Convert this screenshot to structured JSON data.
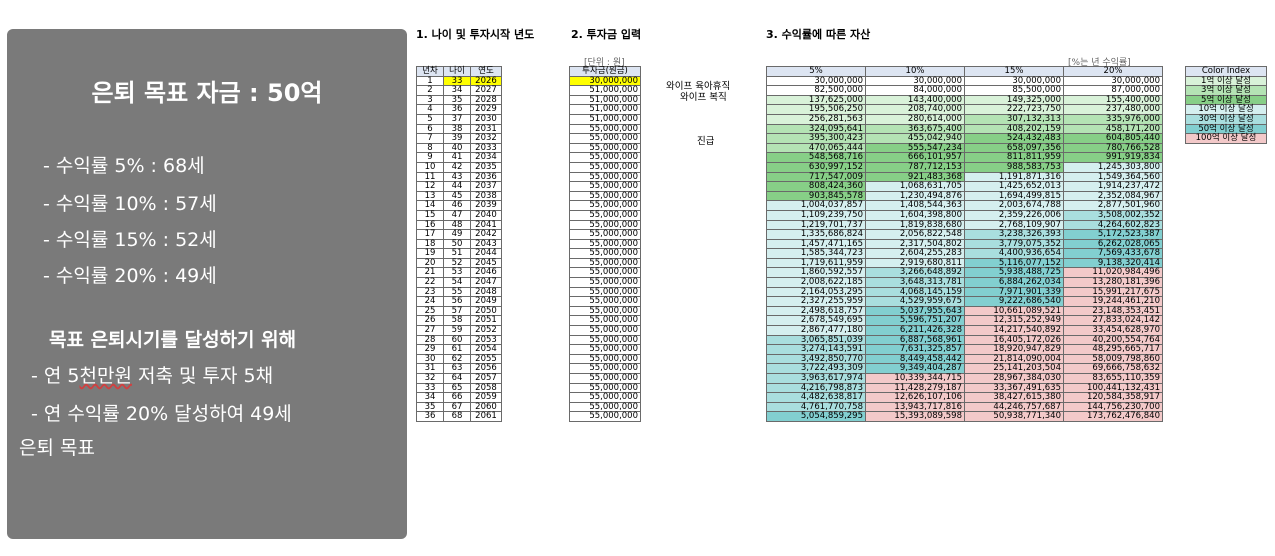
{
  "panel": {
    "title": "은퇴 목표 자금 : 50억",
    "rate_lines": [
      "- 수익률   5% : 68세",
      "- 수익률 10% : 57세",
      "- 수익률 15% : 52세",
      "- 수익률 20% : 49세"
    ],
    "goal_heading": "목표 은퇴시기를 달성하기 위해",
    "plan_1": "- 연 5천만원 저축 및 투자 5채",
    "plan_2": "- 연 수익률 20% 달성하여 49세",
    "plan_3": "은퇴 목표",
    "underlined_word": "천만원"
  },
  "sections": {
    "s1": "1. 나이 및 투자시작 년도",
    "s2": "2. 투자금 입력",
    "s3": "3. 수익률에 따른 자산"
  },
  "notes": {
    "unit": "[단위 : 원]",
    "rate_note": "[%는 년 수익률]"
  },
  "side_labels": {
    "leave": "와이프 육아휴직",
    "welfare": "와이프 복직",
    "promotion": "진급"
  },
  "age_table": {
    "headers": [
      "년차",
      "나이",
      "연도"
    ],
    "rows": [
      [
        "1",
        "33",
        "2026"
      ],
      [
        "2",
        "34",
        "2027"
      ],
      [
        "3",
        "35",
        "2028"
      ],
      [
        "4",
        "36",
        "2029"
      ],
      [
        "5",
        "37",
        "2030"
      ],
      [
        "6",
        "38",
        "2031"
      ],
      [
        "7",
        "39",
        "2032"
      ],
      [
        "8",
        "40",
        "2033"
      ],
      [
        "9",
        "41",
        "2034"
      ],
      [
        "10",
        "42",
        "2035"
      ],
      [
        "11",
        "43",
        "2036"
      ],
      [
        "12",
        "44",
        "2037"
      ],
      [
        "13",
        "45",
        "2038"
      ],
      [
        "14",
        "46",
        "2039"
      ],
      [
        "15",
        "47",
        "2040"
      ],
      [
        "16",
        "48",
        "2041"
      ],
      [
        "17",
        "49",
        "2042"
      ],
      [
        "18",
        "50",
        "2043"
      ],
      [
        "19",
        "51",
        "2044"
      ],
      [
        "20",
        "52",
        "2045"
      ],
      [
        "21",
        "53",
        "2046"
      ],
      [
        "22",
        "54",
        "2047"
      ],
      [
        "23",
        "55",
        "2048"
      ],
      [
        "24",
        "56",
        "2049"
      ],
      [
        "25",
        "57",
        "2050"
      ],
      [
        "26",
        "58",
        "2051"
      ],
      [
        "27",
        "59",
        "2052"
      ],
      [
        "28",
        "60",
        "2053"
      ],
      [
        "29",
        "61",
        "2054"
      ],
      [
        "30",
        "62",
        "2055"
      ],
      [
        "31",
        "63",
        "2056"
      ],
      [
        "32",
        "64",
        "2057"
      ],
      [
        "33",
        "65",
        "2058"
      ],
      [
        "34",
        "66",
        "2059"
      ],
      [
        "35",
        "67",
        "2060"
      ],
      [
        "36",
        "68",
        "2061"
      ]
    ]
  },
  "input_table": {
    "header": "투자금(원금)",
    "rows": [
      "30,000,000",
      "51,000,000",
      "51,000,000",
      "51,000,000",
      "51,000,000",
      "55,000,000",
      "55,000,000",
      "55,000,000",
      "55,000,000",
      "55,000,000",
      "55,000,000",
      "55,000,000",
      "55,000,000",
      "55,000,000",
      "55,000,000",
      "55,000,000",
      "55,000,000",
      "55,000,000",
      "55,000,000",
      "55,000,000",
      "55,000,000",
      "55,000,000",
      "55,000,000",
      "55,000,000",
      "55,000,000",
      "55,000,000",
      "55,000,000",
      "55,000,000",
      "55,000,000",
      "55,000,000",
      "55,000,000",
      "55,000,000",
      "55,000,000",
      "55,000,000",
      "55,000,000",
      "55,000,000"
    ]
  },
  "asset_table": {
    "headers": [
      "5%",
      "10%",
      "15%",
      "20%"
    ],
    "rows": [
      [
        "30,000,000",
        "30,000,000",
        "30,000,000",
        "30,000,000"
      ],
      [
        "82,500,000",
        "84,000,000",
        "85,500,000",
        "87,000,000"
      ],
      [
        "137,625,000",
        "143,400,000",
        "149,325,000",
        "155,400,000"
      ],
      [
        "195,506,250",
        "208,740,000",
        "222,723,750",
        "237,480,000"
      ],
      [
        "256,281,563",
        "280,614,000",
        "307,132,313",
        "335,976,000"
      ],
      [
        "324,095,641",
        "363,675,400",
        "408,202,159",
        "458,171,200"
      ],
      [
        "395,300,423",
        "455,042,940",
        "524,432,483",
        "604,805,440"
      ],
      [
        "470,065,444",
        "555,547,234",
        "658,097,356",
        "780,766,528"
      ],
      [
        "548,568,716",
        "666,101,957",
        "811,811,959",
        "991,919,834"
      ],
      [
        "630,997,152",
        "787,712,153",
        "988,583,753",
        "1,245,303,800"
      ],
      [
        "717,547,009",
        "921,483,368",
        "1,191,871,316",
        "1,549,364,560"
      ],
      [
        "808,424,360",
        "1,068,631,705",
        "1,425,652,013",
        "1,914,237,472"
      ],
      [
        "903,845,578",
        "1,230,494,876",
        "1,694,499,815",
        "2,352,084,967"
      ],
      [
        "1,004,037,857",
        "1,408,544,363",
        "2,003,674,788",
        "2,877,501,960"
      ],
      [
        "1,109,239,750",
        "1,604,398,800",
        "2,359,226,006",
        "3,508,002,352"
      ],
      [
        "1,219,701,737",
        "1,819,838,680",
        "2,768,109,907",
        "4,264,602,823"
      ],
      [
        "1,335,686,824",
        "2,056,822,548",
        "3,238,326,393",
        "5,172,523,387"
      ],
      [
        "1,457,471,165",
        "2,317,504,802",
        "3,779,075,352",
        "6,262,028,065"
      ],
      [
        "1,585,344,723",
        "2,604,255,283",
        "4,400,936,654",
        "7,569,433,678"
      ],
      [
        "1,719,611,959",
        "2,919,680,811",
        "5,116,077,152",
        "9,138,320,414"
      ],
      [
        "1,860,592,557",
        "3,266,648,892",
        "5,938,488,725",
        "11,020,984,496"
      ],
      [
        "2,008,622,185",
        "3,648,313,781",
        "6,884,262,034",
        "13,280,181,396"
      ],
      [
        "2,164,053,295",
        "4,068,145,159",
        "7,971,901,339",
        "15,991,217,675"
      ],
      [
        "2,327,255,959",
        "4,529,959,675",
        "9,222,686,540",
        "19,244,461,210"
      ],
      [
        "2,498,618,757",
        "5,037,955,643",
        "10,661,089,521",
        "23,148,353,451"
      ],
      [
        "2,678,549,695",
        "5,596,751,207",
        "12,315,252,949",
        "27,833,024,142"
      ],
      [
        "2,867,477,180",
        "6,211,426,328",
        "14,217,540,892",
        "33,454,628,970"
      ],
      [
        "3,065,851,039",
        "6,887,568,961",
        "16,405,172,026",
        "40,200,554,764"
      ],
      [
        "3,274,143,591",
        "7,631,325,857",
        "18,920,947,829",
        "48,295,665,717"
      ],
      [
        "3,492,850,770",
        "8,449,458,442",
        "21,814,090,004",
        "58,009,798,860"
      ],
      [
        "3,722,493,309",
        "9,349,404,287",
        "25,141,203,504",
        "69,666,758,632"
      ],
      [
        "3,963,617,974",
        "10,339,344,715",
        "28,967,384,030",
        "83,655,110,359"
      ],
      [
        "4,216,798,873",
        "11,428,279,187",
        "33,367,491,635",
        "100,441,132,431"
      ],
      [
        "4,482,638,817",
        "12,626,107,106",
        "38,427,615,380",
        "120,584,358,917"
      ],
      [
        "4,761,770,758",
        "13,943,717,816",
        "44,246,757,687",
        "144,756,230,700"
      ],
      [
        "5,054,859,295",
        "15,393,089,598",
        "50,938,771,340",
        "173,762,476,840"
      ]
    ]
  },
  "legend": {
    "header": "Color Index",
    "items": [
      "1억 이상 달성",
      "3억 이상 달성",
      "5억 이상 달성",
      "10억 이상 달성",
      "30억 이상 달성",
      "50억 이상 달성",
      "100억 이상 달성"
    ]
  },
  "colors": {
    "panel_bg": "#7a7a7a",
    "highlight": "#ffff00",
    "tier_1": "#d9f2d9",
    "tier_3": "#b4e3b4",
    "tier_5": "#87cf87",
    "tier_10": "#d5efef",
    "tier_30": "#a9dede",
    "tier_50": "#82cfd0",
    "tier_100": "#f3c9c9"
  }
}
